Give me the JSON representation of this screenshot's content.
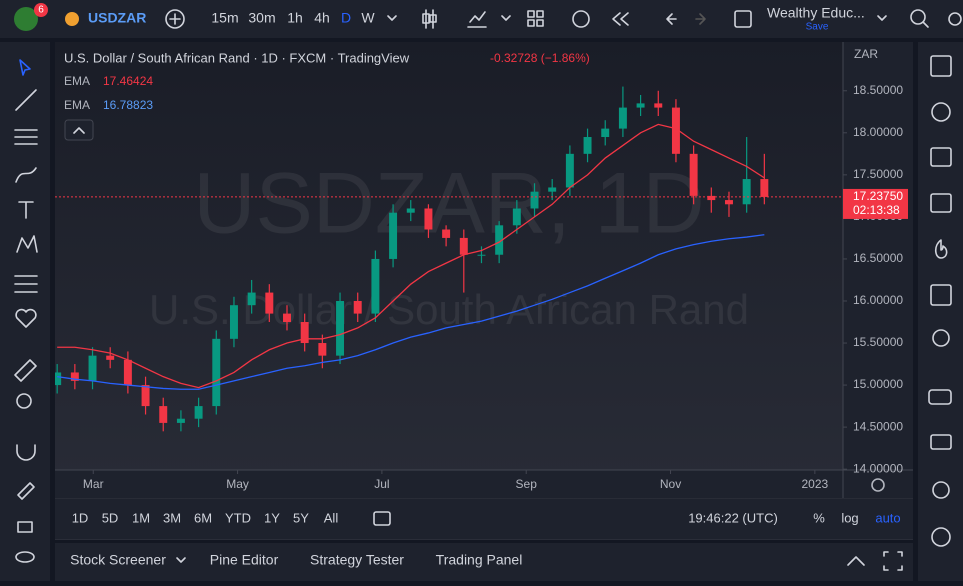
{
  "toolbar": {
    "symbol": "USDZAR",
    "alerts": "6",
    "intervals": [
      "15m",
      "30m",
      "1h",
      "4h",
      "D",
      "W"
    ],
    "account": "Wealthy Educ...",
    "save": "Save"
  },
  "chart_data": {
    "type": "candlestick",
    "title": "U.S. Dollar / South African Rand · 1D · FXCM · TradingView",
    "change": "-0.32728 (−1.86%)",
    "watermark": "USDZAR, 1D",
    "watermark_subtitle": "U.S. Dollar / South African Rand",
    "currency": "ZAR",
    "up_color": "#089981",
    "down_color": "#f23645",
    "x": [
      2.5,
      2.745,
      2.99,
      3.235,
      3.48,
      3.725,
      3.97,
      4.215,
      4.46,
      4.705,
      4.95,
      5.195,
      5.44,
      5.685,
      5.93,
      6.175,
      6.42,
      6.665,
      6.91,
      7.155,
      7.4,
      7.645,
      7.89,
      8.135,
      8.38,
      8.625,
      8.87,
      9.115,
      9.36,
      9.605,
      9.85,
      10.095,
      10.34,
      10.585,
      10.83,
      11.075,
      11.32,
      11.565,
      11.81,
      12.055,
      12.3
    ],
    "open": [
      15.0,
      15.15,
      15.05,
      15.35,
      15.3,
      15.0,
      14.75,
      14.55,
      14.6,
      14.75,
      15.55,
      15.95,
      16.1,
      15.85,
      15.75,
      15.5,
      15.35,
      16.0,
      15.85,
      16.5,
      17.05,
      17.1,
      16.85,
      16.75,
      16.55,
      16.55,
      16.9,
      17.1,
      17.3,
      17.35,
      17.75,
      17.95,
      18.05,
      18.3,
      18.35,
      18.3,
      17.75,
      17.25,
      17.2,
      17.15,
      17.45
    ],
    "high": [
      15.25,
      15.25,
      15.45,
      15.45,
      15.4,
      15.1,
      14.85,
      14.7,
      14.85,
      15.65,
      16.05,
      16.25,
      16.2,
      15.95,
      15.85,
      15.6,
      16.1,
      16.1,
      16.6,
      17.15,
      17.2,
      17.15,
      16.9,
      16.85,
      16.65,
      16.95,
      17.2,
      17.4,
      17.45,
      17.85,
      18.05,
      18.15,
      18.55,
      18.45,
      18.5,
      18.4,
      17.85,
      17.35,
      17.3,
      17.95,
      17.75
    ],
    "low": [
      14.9,
      14.95,
      14.95,
      15.2,
      14.9,
      14.65,
      14.45,
      14.45,
      14.5,
      14.65,
      15.45,
      15.85,
      15.75,
      15.65,
      15.4,
      15.2,
      15.25,
      15.75,
      15.75,
      16.4,
      16.95,
      16.75,
      16.65,
      16.1,
      16.45,
      16.45,
      16.8,
      17.0,
      17.2,
      17.25,
      17.65,
      17.85,
      17.95,
      18.2,
      18.2,
      17.65,
      17.15,
      17.05,
      17.0,
      17.05,
      17.15
    ],
    "close": [
      15.15,
      15.05,
      15.35,
      15.3,
      15.0,
      14.75,
      14.55,
      14.6,
      14.75,
      15.55,
      15.95,
      16.1,
      15.85,
      15.75,
      15.5,
      15.35,
      16.0,
      15.85,
      16.5,
      17.05,
      17.1,
      16.85,
      16.75,
      16.55,
      16.55,
      16.9,
      17.1,
      17.3,
      17.35,
      17.75,
      17.95,
      18.05,
      18.3,
      18.35,
      18.3,
      17.75,
      17.25,
      17.2,
      17.15,
      17.45,
      17.2375
    ],
    "series": [
      {
        "name": "EMA",
        "color": "#f23645",
        "values": [
          15.45,
          15.45,
          15.42,
          15.38,
          15.3,
          15.2,
          15.1,
          15.02,
          14.97,
          15.05,
          15.15,
          15.3,
          15.42,
          15.5,
          15.55,
          15.55,
          15.6,
          15.68,
          15.8,
          16.0,
          16.2,
          16.35,
          16.45,
          16.55,
          16.6,
          16.7,
          16.85,
          17.0,
          17.15,
          17.35,
          17.5,
          17.7,
          17.85,
          18.0,
          18.1,
          18.05,
          17.9,
          17.8,
          17.7,
          17.6,
          17.46424
        ]
      },
      {
        "name": "EMA",
        "color": "#2962ff",
        "values": [
          15.1,
          15.07,
          15.05,
          15.02,
          15.0,
          14.98,
          14.96,
          14.95,
          14.95,
          15.0,
          15.05,
          15.1,
          15.15,
          15.2,
          15.23,
          15.27,
          15.3,
          15.35,
          15.42,
          15.5,
          15.57,
          15.62,
          15.68,
          15.72,
          15.76,
          15.82,
          15.88,
          15.95,
          16.02,
          16.1,
          16.18,
          16.27,
          16.36,
          16.45,
          16.55,
          16.62,
          16.67,
          16.71,
          16.74,
          16.76,
          16.78823
        ]
      }
    ],
    "xlim": [
      2.47,
      13.39
    ],
    "xticks": [
      {
        "value": 3,
        "label": "Mar"
      },
      {
        "value": 5,
        "label": "May"
      },
      {
        "value": 7,
        "label": "Jul"
      },
      {
        "value": 9,
        "label": "Sep"
      },
      {
        "value": 11,
        "label": "Nov"
      },
      {
        "value": 13,
        "label": "2023"
      }
    ],
    "ylim": [
      13.99,
      19.08
    ],
    "yticks": [
      {
        "value": 14,
        "label": "14.00000"
      },
      {
        "value": 14.5,
        "label": "14.50000"
      },
      {
        "value": 15,
        "label": "15.00000"
      },
      {
        "value": 15.5,
        "label": "15.50000"
      },
      {
        "value": 16,
        "label": "16.00000"
      },
      {
        "value": 16.5,
        "label": "16.50000"
      },
      {
        "value": 17,
        "label": "17.00000"
      },
      {
        "value": 17.5,
        "label": "17.50000"
      },
      {
        "value": 18,
        "label": "18.00000"
      },
      {
        "value": 18.5,
        "label": "18.50000"
      }
    ],
    "last_price": {
      "value": 17.2375,
      "label": "17.23750"
    },
    "countdown": "02:13:38"
  },
  "range_bar": {
    "ranges": [
      "1D",
      "5D",
      "1M",
      "3M",
      "6M",
      "YTD",
      "1Y",
      "5Y",
      "All"
    ],
    "clock": "19:46:22 (UTC)",
    "percent": "%",
    "log": "log",
    "auto": "auto"
  },
  "bottom_panel": {
    "tabs": [
      "Stock Screener",
      "Pine Editor",
      "Strategy Tester",
      "Trading Panel"
    ]
  }
}
